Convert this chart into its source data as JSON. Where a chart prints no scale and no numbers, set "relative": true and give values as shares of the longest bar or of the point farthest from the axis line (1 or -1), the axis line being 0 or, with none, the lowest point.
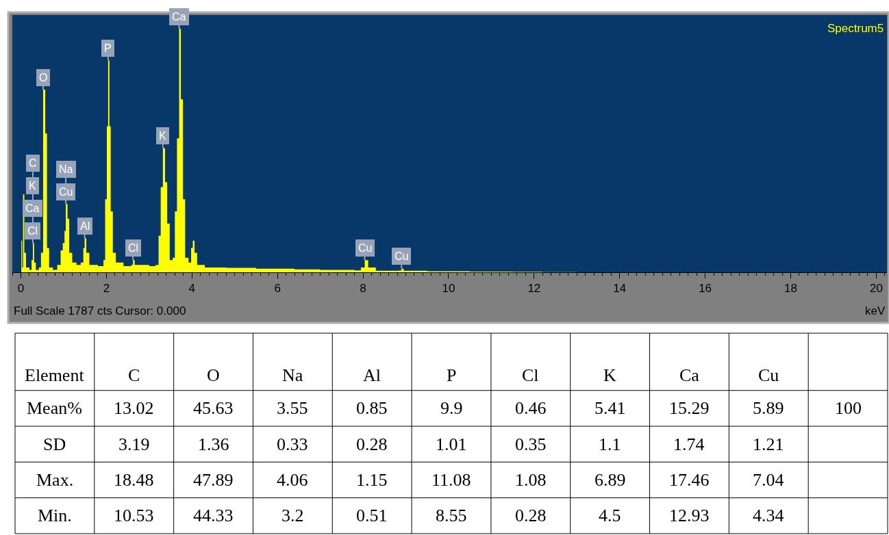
{
  "chart_data": [
    {
      "type": "area",
      "relative": true,
      "color": "#ffff00",
      "xlabel": "keV",
      "xlim": [
        -0.2,
        20.25
      ],
      "xticks": [
        0,
        2,
        4,
        6,
        8,
        10,
        12,
        14,
        16,
        18,
        20
      ],
      "tick_labels": "x",
      "x": [
        0.0,
        0.01,
        0.03,
        0.05,
        0.08,
        0.12,
        0.2,
        0.25,
        0.28,
        0.31,
        0.35,
        0.42,
        0.47,
        0.52,
        0.57,
        0.61,
        0.66,
        0.75,
        0.85,
        0.93,
        0.98,
        1.02,
        1.05,
        1.09,
        1.13,
        1.2,
        1.3,
        1.4,
        1.46,
        1.49,
        1.53,
        1.6,
        1.8,
        1.93,
        1.97,
        2.01,
        2.04,
        2.07,
        2.1,
        2.15,
        2.22,
        2.4,
        2.58,
        2.62,
        2.66,
        3.0,
        3.15,
        3.22,
        3.27,
        3.32,
        3.37,
        3.42,
        3.48,
        3.55,
        3.6,
        3.65,
        3.7,
        3.74,
        3.79,
        3.84,
        3.92,
        3.98,
        4.02,
        4.06,
        4.12,
        4.3,
        4.8,
        5.5,
        6.4,
        7.0,
        7.8,
        7.95,
        8.04,
        8.12,
        8.3,
        8.85,
        8.9,
        8.95,
        9.5,
        10.5,
        11.5,
        12.2,
        13.0,
        20.0
      ],
      "values": [
        0.0,
        0.13,
        0.02,
        0.32,
        0.08,
        0.02,
        0.01,
        0.05,
        0.12,
        0.04,
        0.01,
        0.02,
        0.08,
        0.75,
        0.57,
        0.1,
        0.02,
        0.01,
        0.03,
        0.09,
        0.12,
        0.17,
        0.28,
        0.22,
        0.08,
        0.04,
        0.03,
        0.04,
        0.1,
        0.14,
        0.08,
        0.03,
        0.025,
        0.05,
        0.3,
        0.6,
        0.87,
        0.6,
        0.25,
        0.08,
        0.04,
        0.025,
        0.03,
        0.05,
        0.03,
        0.025,
        0.03,
        0.15,
        0.35,
        0.51,
        0.37,
        0.2,
        0.05,
        0.06,
        0.25,
        0.55,
        1.0,
        0.71,
        0.3,
        0.06,
        0.04,
        0.1,
        0.13,
        0.08,
        0.03,
        0.02,
        0.018,
        0.015,
        0.012,
        0.01,
        0.008,
        0.02,
        0.05,
        0.02,
        0.006,
        0.008,
        0.015,
        0.006,
        0.004,
        0.003,
        0.002,
        0.001,
        0.0,
        0.0
      ],
      "annotations": [
        "Spectrum5",
        "Full Scale 1787 cts Cursor: 0.000",
        {
          "text": "C",
          "x": 0.28,
          "y": 0.12
        },
        {
          "text": "K",
          "x": 0.28,
          "y": 0.12
        },
        {
          "text": "Ca",
          "x": 0.28,
          "y": 0.12
        },
        {
          "text": "Cl",
          "x": 0.28,
          "y": 0.12
        },
        {
          "text": "O",
          "x": 0.52,
          "y": 0.75
        },
        {
          "text": "Na",
          "x": 1.05,
          "y": 0.28
        },
        {
          "text": "Cu",
          "x": 1.05,
          "y": 0.28
        },
        {
          "text": "Al",
          "x": 1.49,
          "y": 0.14
        },
        {
          "text": "P",
          "x": 2.04,
          "y": 0.87
        },
        {
          "text": "Cl",
          "x": 2.62,
          "y": 0.05
        },
        {
          "text": "K",
          "x": 3.32,
          "y": 0.51
        },
        {
          "text": "Ca",
          "x": 3.7,
          "y": 1.0
        },
        {
          "text": "Cu",
          "x": 8.04,
          "y": 0.05
        },
        {
          "text": "Cu",
          "x": 8.9,
          "y": 0.015
        }
      ]
    },
    {
      "type": "heatmap",
      "ylabel": "Element",
      "data_labels": true,
      "categories": [
        "C",
        "O",
        "Na",
        "Al",
        "P",
        "Cl",
        "K",
        "Ca",
        "Cu",
        null
      ],
      "y_categories": [
        "Mean%",
        "SD",
        "Max.",
        "Min."
      ],
      "cells": [
        [
          13.02,
          45.63,
          3.55,
          0.85,
          9.9,
          0.46,
          5.41,
          15.29,
          5.89,
          100
        ],
        [
          3.19,
          1.36,
          0.33,
          0.28,
          1.01,
          0.35,
          1.1,
          1.74,
          1.21,
          null
        ],
        [
          18.48,
          47.89,
          4.06,
          1.15,
          11.08,
          1.08,
          6.89,
          17.46,
          7.04,
          null
        ],
        [
          10.53,
          44.33,
          3.2,
          0.51,
          8.55,
          0.28,
          4.5,
          12.93,
          4.34,
          null
        ]
      ]
    }
  ]
}
